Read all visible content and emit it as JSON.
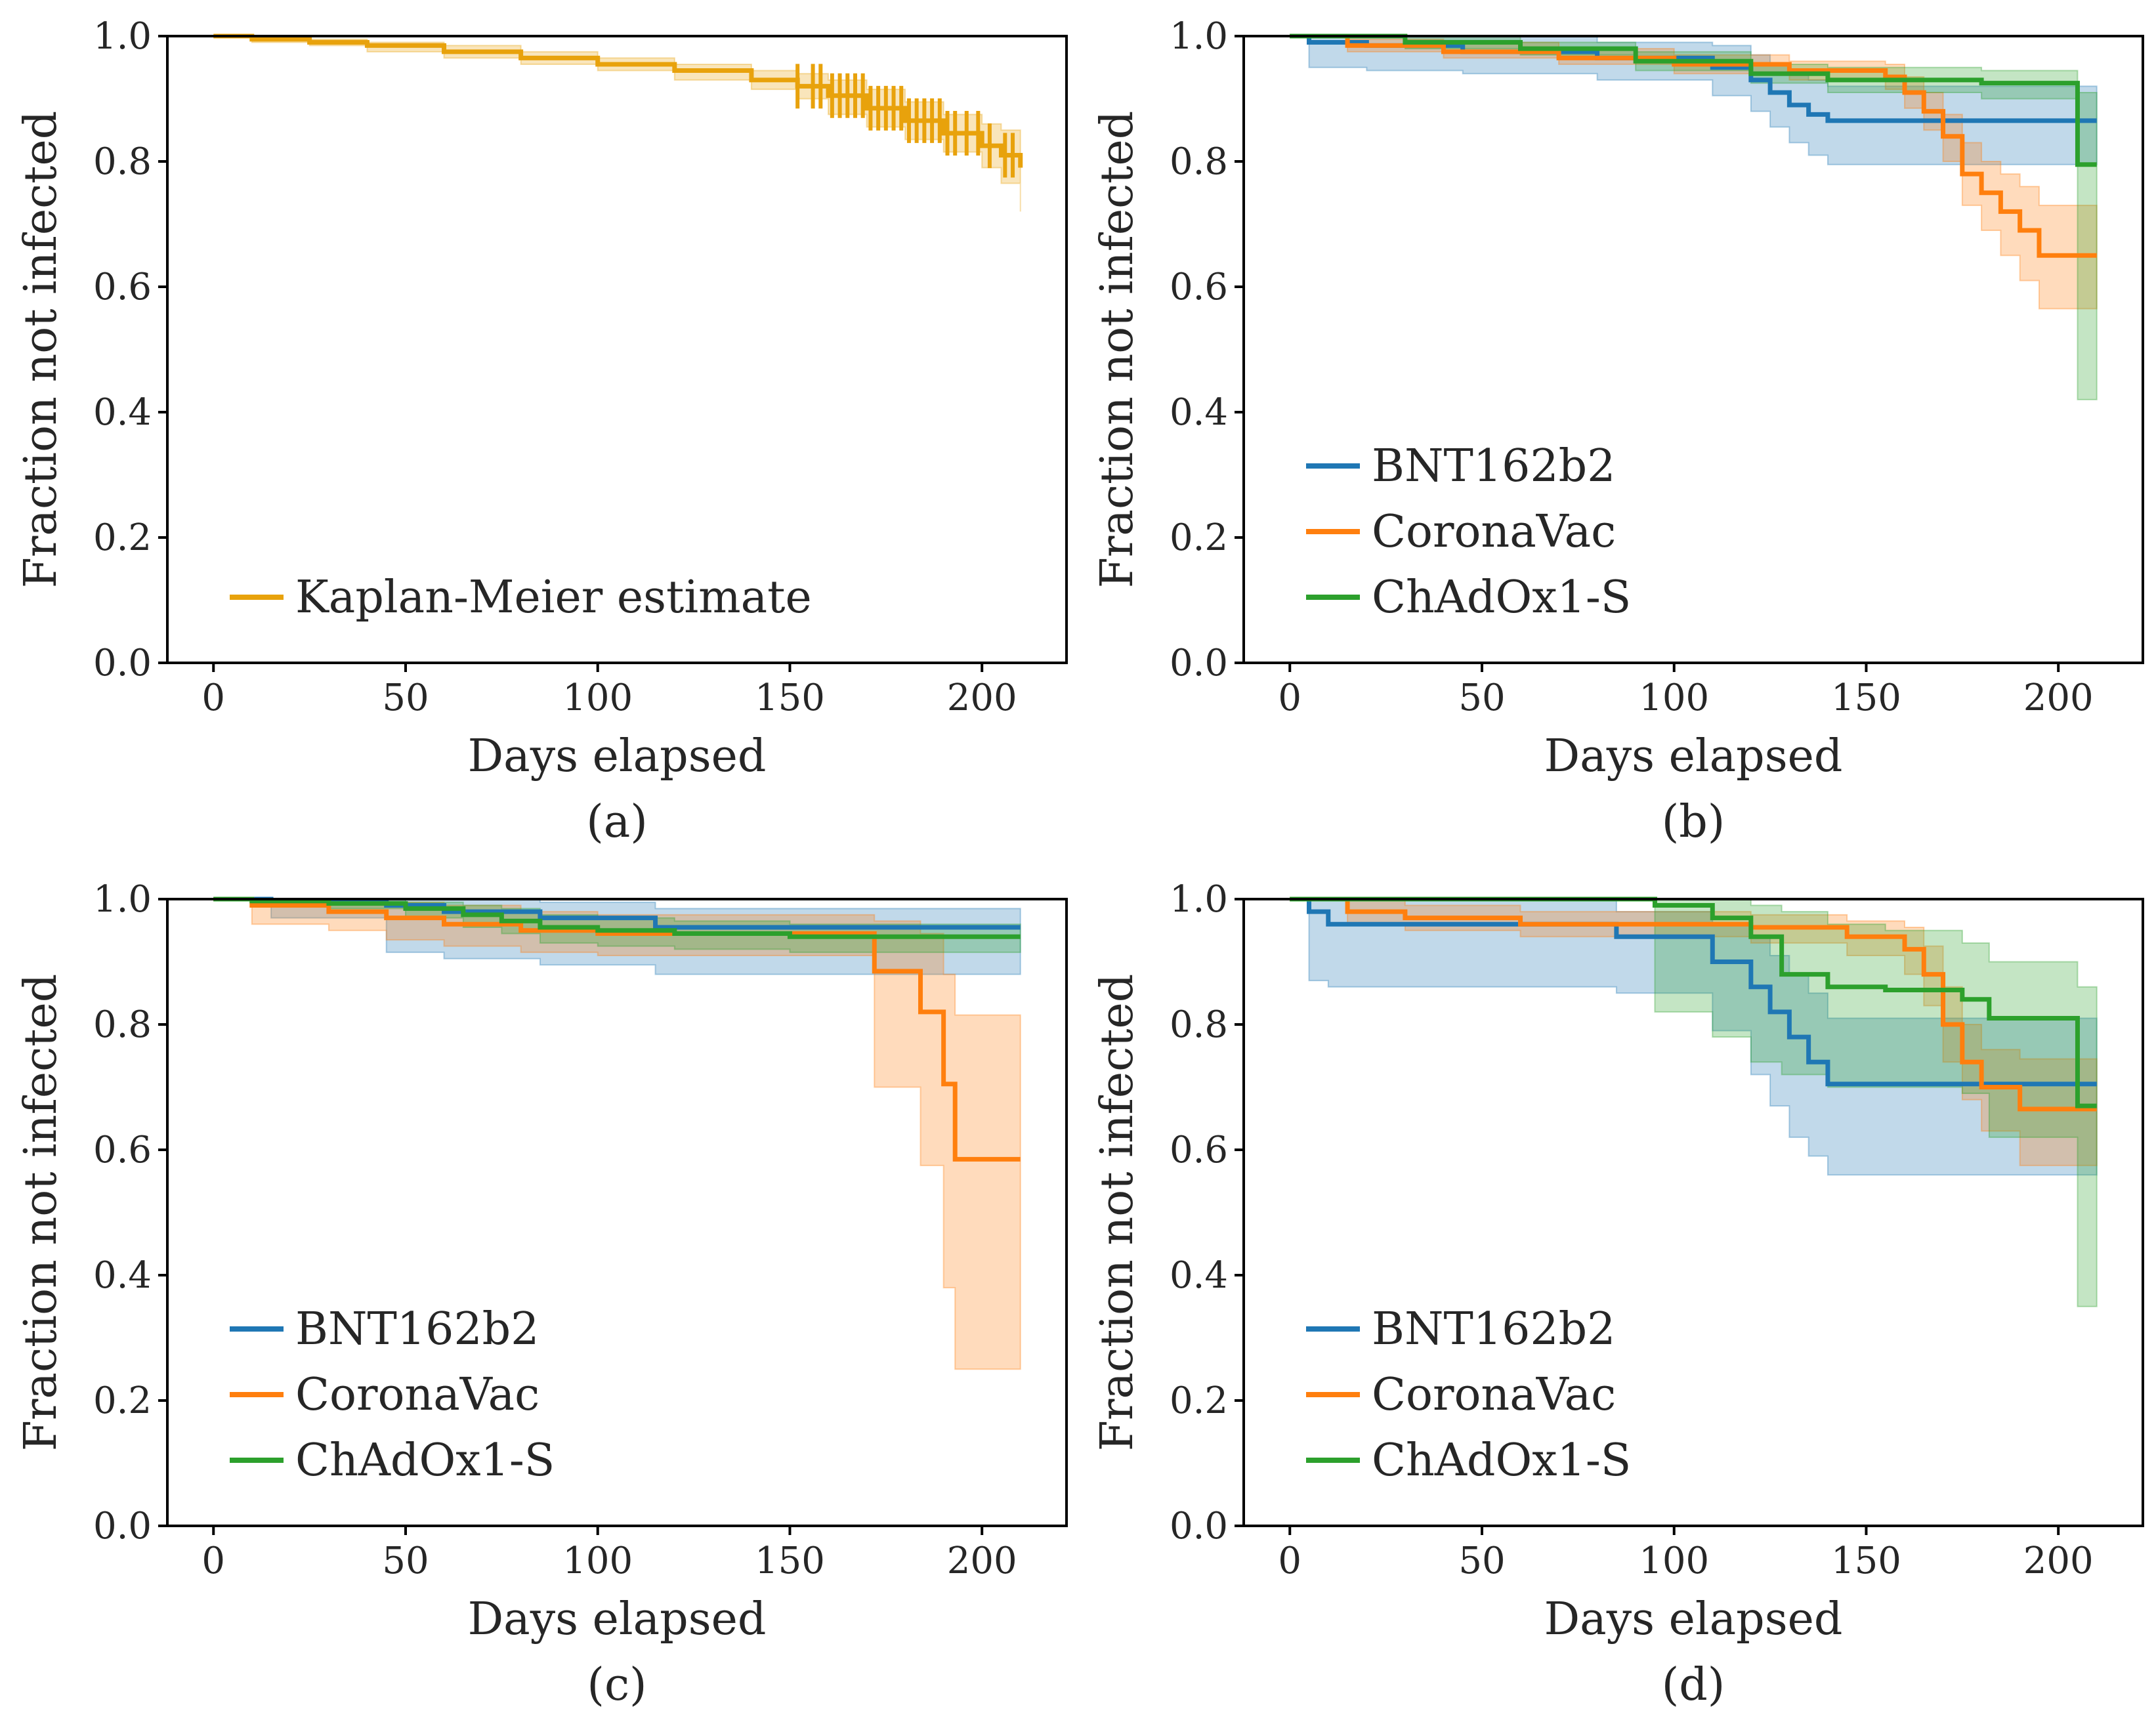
{
  "figure": {
    "colors": {
      "overall": "#e8a20c",
      "BNT162b2": "#1f77b4",
      "CoronaVac": "#ff7f0e",
      "ChAdOx1-S": "#2ca02c"
    }
  },
  "chart_data": [
    {
      "panel": "(a)",
      "type": "line",
      "step": true,
      "xlabel": "Days elapsed",
      "ylabel": "Fraction not infected",
      "xlim": [
        -12,
        222
      ],
      "ylim": [
        0.0,
        1.0
      ],
      "xticks": [
        "0",
        "50",
        "100",
        "150",
        "200"
      ],
      "yticks": [
        "0.0",
        "0.2",
        "0.4",
        "0.6",
        "0.8",
        "1.0"
      ],
      "legend_position": "lower-left",
      "series": [
        {
          "name": "Kaplan-Meier estimate",
          "color": "#e8a20c",
          "x": [
            0,
            10,
            25,
            40,
            60,
            80,
            100,
            120,
            140,
            152,
            160,
            170,
            180,
            190,
            200,
            205,
            210
          ],
          "y": [
            1.0,
            0.995,
            0.99,
            0.985,
            0.975,
            0.965,
            0.955,
            0.945,
            0.93,
            0.92,
            0.905,
            0.885,
            0.865,
            0.845,
            0.825,
            0.81,
            0.79
          ],
          "ci_low": [
            1.0,
            0.99,
            0.985,
            0.975,
            0.965,
            0.955,
            0.945,
            0.93,
            0.915,
            0.9,
            0.875,
            0.855,
            0.835,
            0.815,
            0.79,
            0.765,
            0.72
          ],
          "ci_high": [
            1.0,
            1.0,
            0.995,
            0.99,
            0.985,
            0.975,
            0.965,
            0.955,
            0.945,
            0.94,
            0.93,
            0.915,
            0.895,
            0.875,
            0.86,
            0.85,
            0.84
          ],
          "censor_ticks_x": [
            152,
            156,
            158,
            161,
            163,
            165,
            167,
            169,
            171,
            173,
            175,
            177,
            179,
            181,
            183,
            185,
            187,
            189,
            191,
            193,
            196,
            199,
            202,
            206,
            208
          ]
        }
      ]
    },
    {
      "panel": "(b)",
      "type": "line",
      "step": true,
      "xlabel": "Days elapsed",
      "ylabel": "Fraction not infected",
      "xlim": [
        -12,
        222
      ],
      "ylim": [
        0.0,
        1.0
      ],
      "xticks": [
        "0",
        "50",
        "100",
        "150",
        "200"
      ],
      "yticks": [
        "0.0",
        "0.2",
        "0.4",
        "0.6",
        "0.8",
        "1.0"
      ],
      "legend_position": "lower-left",
      "series": [
        {
          "name": "BNT162b2",
          "color": "#1f77b4",
          "x": [
            0,
            5,
            20,
            45,
            80,
            110,
            120,
            125,
            130,
            135,
            140,
            150,
            210
          ],
          "y": [
            1.0,
            0.99,
            0.985,
            0.975,
            0.965,
            0.95,
            0.93,
            0.91,
            0.89,
            0.875,
            0.865,
            0.865,
            0.865
          ],
          "ci_low": [
            1.0,
            0.95,
            0.945,
            0.94,
            0.93,
            0.905,
            0.88,
            0.855,
            0.83,
            0.81,
            0.795,
            0.795,
            0.795
          ],
          "ci_high": [
            1.0,
            1.0,
            1.0,
            1.0,
            0.99,
            0.985,
            0.97,
            0.955,
            0.94,
            0.93,
            0.92,
            0.92,
            0.92
          ]
        },
        {
          "name": "CoronaVac",
          "color": "#ff7f0e",
          "x": [
            0,
            15,
            40,
            70,
            100,
            130,
            155,
            160,
            165,
            170,
            175,
            180,
            185,
            190,
            195,
            210
          ],
          "y": [
            1.0,
            0.985,
            0.975,
            0.965,
            0.955,
            0.945,
            0.935,
            0.91,
            0.88,
            0.84,
            0.78,
            0.75,
            0.72,
            0.69,
            0.65,
            0.65
          ],
          "ci_low": [
            1.0,
            0.975,
            0.965,
            0.955,
            0.94,
            0.93,
            0.915,
            0.885,
            0.85,
            0.8,
            0.73,
            0.69,
            0.65,
            0.61,
            0.565,
            0.565
          ],
          "ci_high": [
            1.0,
            0.995,
            0.99,
            0.98,
            0.97,
            0.96,
            0.955,
            0.935,
            0.91,
            0.875,
            0.83,
            0.8,
            0.78,
            0.76,
            0.73,
            0.73
          ]
        },
        {
          "name": "ChAdOx1-S",
          "color": "#2ca02c",
          "x": [
            0,
            30,
            60,
            90,
            120,
            140,
            180,
            205,
            210
          ],
          "y": [
            1.0,
            0.99,
            0.98,
            0.96,
            0.94,
            0.93,
            0.925,
            0.795,
            0.795
          ],
          "ci_low": [
            1.0,
            0.98,
            0.97,
            0.945,
            0.925,
            0.91,
            0.9,
            0.42,
            0.42
          ],
          "ci_high": [
            1.0,
            1.0,
            0.99,
            0.975,
            0.955,
            0.95,
            0.945,
            0.91,
            0.91
          ]
        }
      ]
    },
    {
      "panel": "(c)",
      "type": "line",
      "step": true,
      "xlabel": "Days elapsed",
      "ylabel": "Fraction not infected",
      "xlim": [
        -12,
        222
      ],
      "ylim": [
        0.0,
        1.0
      ],
      "xticks": [
        "0",
        "50",
        "100",
        "150",
        "200"
      ],
      "yticks": [
        "0.0",
        "0.2",
        "0.4",
        "0.6",
        "0.8",
        "1.0"
      ],
      "legend_position": "lower-left",
      "series": [
        {
          "name": "BNT162b2",
          "color": "#1f77b4",
          "x": [
            0,
            15,
            45,
            60,
            85,
            115,
            210
          ],
          "y": [
            1.0,
            0.995,
            0.99,
            0.98,
            0.97,
            0.955,
            0.955
          ],
          "ci_low": [
            1.0,
            0.97,
            0.915,
            0.905,
            0.895,
            0.88,
            0.88
          ],
          "ci_high": [
            1.0,
            1.0,
            1.0,
            1.0,
            0.995,
            0.985,
            0.985
          ]
        },
        {
          "name": "CoronaVac",
          "color": "#ff7f0e",
          "x": [
            0,
            10,
            30,
            45,
            60,
            80,
            100,
            172,
            184,
            190,
            193,
            210
          ],
          "y": [
            1.0,
            0.99,
            0.98,
            0.97,
            0.96,
            0.95,
            0.945,
            0.885,
            0.82,
            0.705,
            0.585,
            0.585
          ],
          "ci_low": [
            1.0,
            0.96,
            0.95,
            0.935,
            0.925,
            0.915,
            0.91,
            0.7,
            0.575,
            0.38,
            0.25,
            0.25
          ],
          "ci_high": [
            1.0,
            1.0,
            1.0,
            0.995,
            0.99,
            0.98,
            0.975,
            0.965,
            0.945,
            0.88,
            0.815,
            0.815
          ]
        },
        {
          "name": "ChAdOx1-S",
          "color": "#2ca02c",
          "x": [
            0,
            10,
            30,
            50,
            65,
            75,
            85,
            100,
            120,
            150,
            210
          ],
          "y": [
            1.0,
            0.997,
            0.993,
            0.985,
            0.975,
            0.965,
            0.955,
            0.95,
            0.945,
            0.94,
            0.94
          ],
          "ci_low": [
            1.0,
            0.99,
            0.985,
            0.97,
            0.955,
            0.945,
            0.93,
            0.925,
            0.92,
            0.915,
            0.915
          ],
          "ci_high": [
            1.0,
            1.0,
            1.0,
            0.995,
            0.99,
            0.985,
            0.975,
            0.97,
            0.965,
            0.96,
            0.96
          ]
        }
      ]
    },
    {
      "panel": "(d)",
      "type": "line",
      "step": true,
      "xlabel": "Days elapsed",
      "ylabel": "Fraction not infected",
      "xlim": [
        -12,
        222
      ],
      "ylim": [
        0.0,
        1.0
      ],
      "xticks": [
        "0",
        "50",
        "100",
        "150",
        "200"
      ],
      "yticks": [
        "0.0",
        "0.2",
        "0.4",
        "0.6",
        "0.8",
        "1.0"
      ],
      "legend_position": "lower-left",
      "series": [
        {
          "name": "BNT162b2",
          "color": "#1f77b4",
          "x": [
            0,
            5,
            10,
            85,
            110,
            120,
            125,
            130,
            135,
            140,
            180,
            210
          ],
          "y": [
            1.0,
            0.98,
            0.96,
            0.94,
            0.9,
            0.86,
            0.82,
            0.78,
            0.74,
            0.705,
            0.705,
            0.705
          ],
          "ci_low": [
            1.0,
            0.87,
            0.86,
            0.85,
            0.79,
            0.72,
            0.67,
            0.62,
            0.59,
            0.56,
            0.56,
            0.56
          ],
          "ci_high": [
            1.0,
            1.0,
            1.0,
            0.98,
            0.96,
            0.94,
            0.91,
            0.88,
            0.85,
            0.81,
            0.81,
            0.81
          ]
        },
        {
          "name": "CoronaVac",
          "color": "#ff7f0e",
          "x": [
            0,
            15,
            30,
            60,
            120,
            145,
            160,
            165,
            170,
            175,
            180,
            190,
            210
          ],
          "y": [
            1.0,
            0.98,
            0.97,
            0.96,
            0.955,
            0.94,
            0.92,
            0.88,
            0.8,
            0.74,
            0.7,
            0.665,
            0.665
          ],
          "ci_low": [
            1.0,
            0.96,
            0.95,
            0.94,
            0.93,
            0.91,
            0.88,
            0.83,
            0.74,
            0.68,
            0.63,
            0.575,
            0.575
          ],
          "ci_high": [
            1.0,
            1.0,
            0.99,
            0.98,
            0.975,
            0.965,
            0.955,
            0.925,
            0.86,
            0.8,
            0.76,
            0.745,
            0.745
          ]
        },
        {
          "name": "ChAdOx1-S",
          "color": "#2ca02c",
          "x": [
            0,
            95,
            110,
            120,
            128,
            140,
            155,
            175,
            182,
            205,
            210
          ],
          "y": [
            1.0,
            0.99,
            0.97,
            0.94,
            0.88,
            0.86,
            0.855,
            0.84,
            0.81,
            0.67,
            0.67
          ],
          "ci_low": [
            1.0,
            0.82,
            0.78,
            0.74,
            0.72,
            0.7,
            0.7,
            0.69,
            0.62,
            0.35,
            0.35
          ],
          "ci_high": [
            1.0,
            1.0,
            1.0,
            0.99,
            0.98,
            0.96,
            0.95,
            0.93,
            0.9,
            0.86,
            0.86
          ]
        }
      ]
    }
  ]
}
